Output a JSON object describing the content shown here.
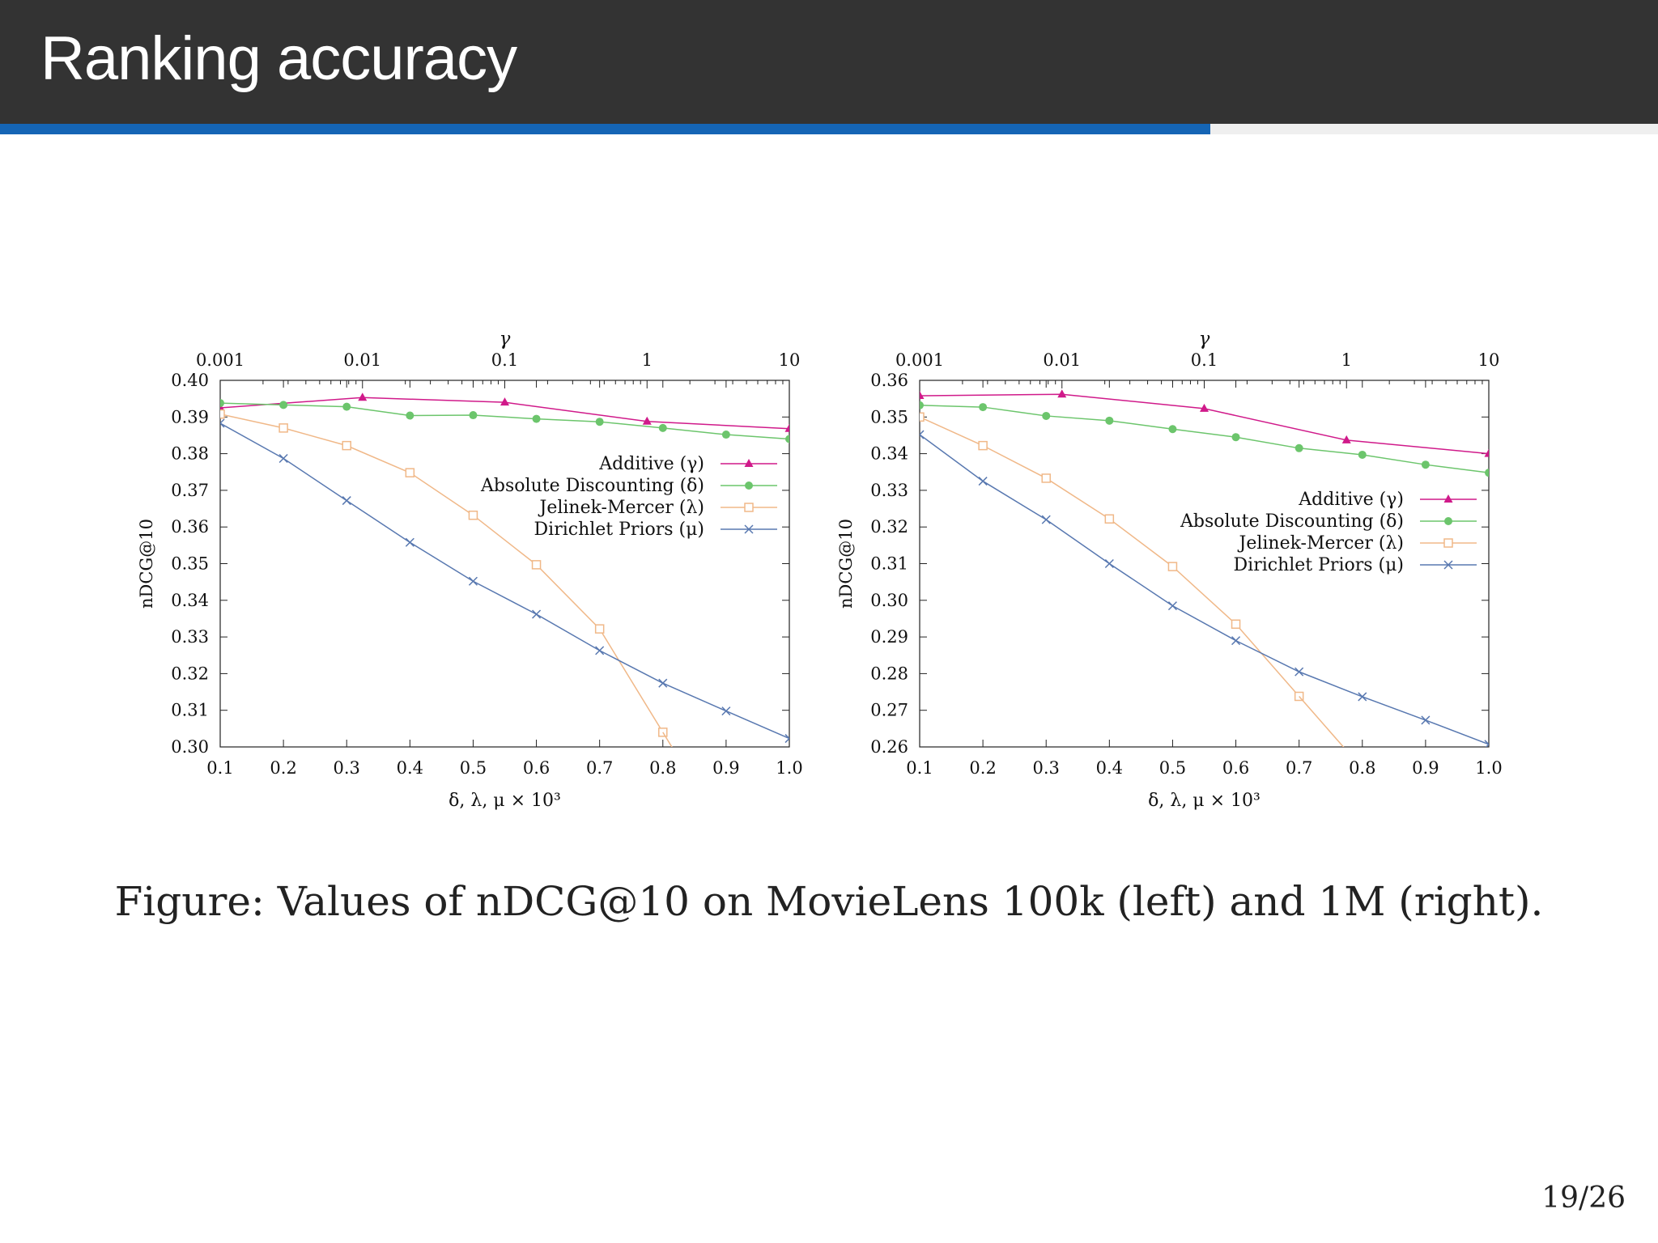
{
  "slide": {
    "title": "Ranking accuracy",
    "caption": "Figure: Values of nDCG@10 on MovieLens 100k (left) and 1M (right).",
    "page": "19/26",
    "progress": 0.73,
    "colors": {
      "header": "#333333",
      "progress": "#1565b5"
    }
  },
  "chart_data": [
    {
      "type": "line",
      "title": "",
      "xlabel": "δ, λ, μ × 10³",
      "ylabel": "nDCG@10",
      "top_axis_label": "γ",
      "xlim": [
        0.1,
        1.0
      ],
      "x_ticks": [
        "0.1",
        "0.2",
        "0.3",
        "0.4",
        "0.5",
        "0.6",
        "0.7",
        "0.8",
        "0.9",
        "1.0"
      ],
      "top_axis_range": [
        0.001,
        10
      ],
      "top_axis_scale": "log",
      "top_ticks": [
        "0.001",
        "0.01",
        "0.1",
        "1",
        "10"
      ],
      "ylim": [
        0.3,
        0.4
      ],
      "y_ticks": [
        "0.30",
        "0.31",
        "0.32",
        "0.33",
        "0.34",
        "0.35",
        "0.36",
        "0.37",
        "0.38",
        "0.39",
        "0.40"
      ],
      "legend_position": "upper-right",
      "series": [
        {
          "name": "Additive (γ)",
          "axis": "top",
          "color": "#d01a8a",
          "marker": "triangle",
          "x": [
            0.001,
            0.01,
            0.1,
            1,
            10
          ],
          "y": [
            0.3925,
            0.3953,
            0.394,
            0.3888,
            0.3868
          ]
        },
        {
          "name": "Absolute Discounting (δ)",
          "axis": "bottom",
          "color": "#6cc56c",
          "marker": "circle",
          "x": [
            0.1,
            0.2,
            0.3,
            0.4,
            0.5,
            0.6,
            0.7,
            0.8,
            0.9,
            1.0
          ],
          "y": [
            0.3938,
            0.3933,
            0.3928,
            0.3904,
            0.3905,
            0.3895,
            0.3887,
            0.387,
            0.3852,
            0.384
          ]
        },
        {
          "name": "Jelinek-Mercer (λ)",
          "axis": "bottom",
          "color": "#f0b888",
          "marker": "square",
          "x": [
            0.1,
            0.2,
            0.3,
            0.4,
            0.5,
            0.6,
            0.7,
            0.8
          ],
          "y": [
            0.3908,
            0.387,
            0.3822,
            0.3748,
            0.3632,
            0.3497,
            0.3322,
            0.304
          ]
        },
        {
          "name": "Dirichlet Priors (μ)",
          "axis": "bottom",
          "color": "#5878b0",
          "marker": "cross",
          "x": [
            0.1,
            0.2,
            0.3,
            0.4,
            0.5,
            0.6,
            0.7,
            0.8,
            0.9,
            1.0
          ],
          "y": [
            0.3883,
            0.3787,
            0.3672,
            0.3558,
            0.3452,
            0.3362,
            0.3263,
            0.3174,
            0.3098,
            0.3023
          ]
        }
      ]
    },
    {
      "type": "line",
      "title": "",
      "xlabel": "δ, λ, μ × 10³",
      "ylabel": "nDCG@10",
      "top_axis_label": "γ",
      "xlim": [
        0.1,
        1.0
      ],
      "x_ticks": [
        "0.1",
        "0.2",
        "0.3",
        "0.4",
        "0.5",
        "0.6",
        "0.7",
        "0.8",
        "0.9",
        "1.0"
      ],
      "top_axis_range": [
        0.001,
        10
      ],
      "top_axis_scale": "log",
      "top_ticks": [
        "0.001",
        "0.01",
        "0.1",
        "1",
        "10"
      ],
      "ylim": [
        0.26,
        0.36
      ],
      "y_ticks": [
        "0.26",
        "0.27",
        "0.28",
        "0.29",
        "0.30",
        "0.31",
        "0.32",
        "0.33",
        "0.34",
        "0.35",
        "0.36"
      ],
      "legend_position": "right",
      "series": [
        {
          "name": "Additive (γ)",
          "axis": "top",
          "color": "#d01a8a",
          "marker": "triangle",
          "x": [
            0.001,
            0.01,
            0.1,
            1,
            10
          ],
          "y": [
            0.3558,
            0.3562,
            0.3523,
            0.3437,
            0.34
          ]
        },
        {
          "name": "Absolute Discounting (δ)",
          "axis": "bottom",
          "color": "#6cc56c",
          "marker": "circle",
          "x": [
            0.1,
            0.2,
            0.3,
            0.4,
            0.5,
            0.6,
            0.7,
            0.8,
            0.9,
            1.0
          ],
          "y": [
            0.3532,
            0.3527,
            0.3503,
            0.349,
            0.3467,
            0.3445,
            0.3415,
            0.3397,
            0.337,
            0.3348
          ]
        },
        {
          "name": "Jelinek-Mercer (λ)",
          "axis": "bottom",
          "color": "#f0b888",
          "marker": "square",
          "x": [
            0.1,
            0.2,
            0.3,
            0.4,
            0.5,
            0.6,
            0.7
          ],
          "y": [
            0.35,
            0.3422,
            0.3333,
            0.3222,
            0.3092,
            0.2935,
            0.2738
          ]
        },
        {
          "name": "Dirichlet Priors (μ)",
          "axis": "bottom",
          "color": "#5878b0",
          "marker": "cross",
          "x": [
            0.1,
            0.2,
            0.3,
            0.4,
            0.5,
            0.6,
            0.7,
            0.8,
            0.9,
            1.0
          ],
          "y": [
            0.3452,
            0.3325,
            0.322,
            0.31,
            0.2985,
            0.289,
            0.2805,
            0.2737,
            0.2673,
            0.2607
          ]
        }
      ]
    }
  ]
}
